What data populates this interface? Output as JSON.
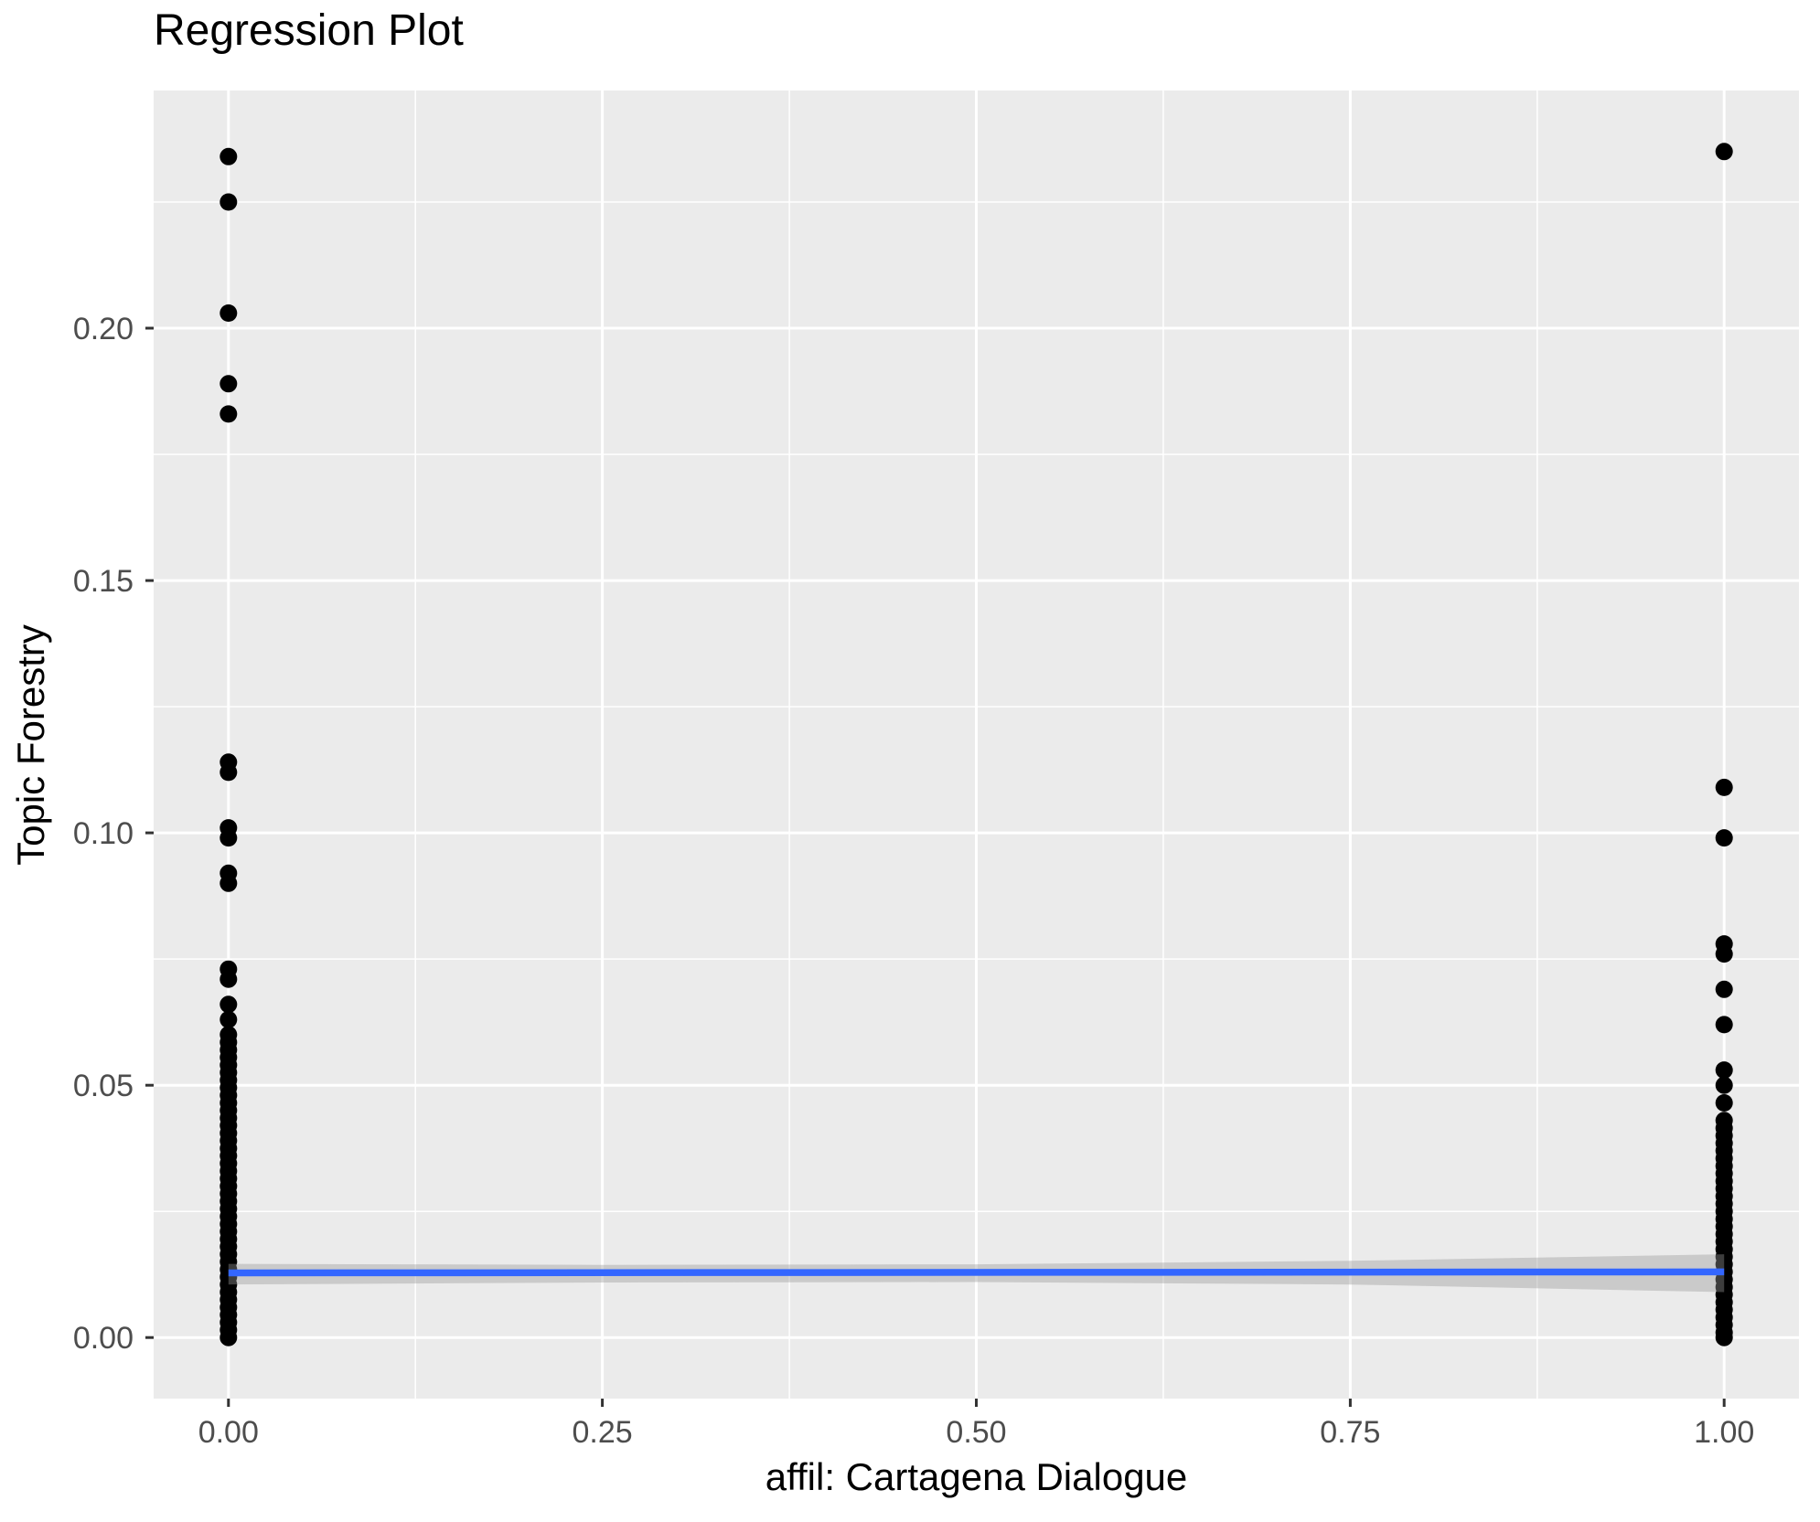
{
  "chart": {
    "title": "Regression Plot",
    "x_axis_title": "affil: Cartagena Dialogue",
    "y_axis_title": "Topic Forestry"
  },
  "chart_data": {
    "type": "scatter",
    "title": "Regression Plot",
    "xlabel": "affil: Cartagena Dialogue",
    "ylabel": "Topic Forestry",
    "xlim": [
      -0.05,
      1.05
    ],
    "ylim": [
      -0.0121,
      0.2471
    ],
    "grid": true,
    "legend": false,
    "x_ticks": [
      {
        "value": 0.0,
        "label": "0.00"
      },
      {
        "value": 0.25,
        "label": "0.25"
      },
      {
        "value": 0.5,
        "label": "0.50"
      },
      {
        "value": 0.75,
        "label": "0.75"
      },
      {
        "value": 1.0,
        "label": "1.00"
      }
    ],
    "y_ticks": [
      {
        "value": 0.0,
        "label": "0.00"
      },
      {
        "value": 0.05,
        "label": "0.05"
      },
      {
        "value": 0.1,
        "label": "0.10"
      },
      {
        "value": 0.15,
        "label": "0.15"
      },
      {
        "value": 0.2,
        "label": "0.20"
      }
    ],
    "x_minor_ticks": [
      0.125,
      0.375,
      0.625,
      0.875
    ],
    "y_minor_ticks": [
      0.025,
      0.075,
      0.125,
      0.175,
      0.225
    ],
    "colors": {
      "panel_background": "#EBEBEB",
      "grid_line": "#FFFFFF",
      "point": "#000000",
      "fit_line": "#3366FF",
      "confidence_band": "#999999",
      "tick_mark": "#333333",
      "tick_label": "#4D4D4D"
    },
    "scatter_groups": [
      {
        "x": 0,
        "values": [
          0.234,
          0.225,
          0.203,
          0.189,
          0.183,
          0.114,
          0.112,
          0.101,
          0.099,
          0.092,
          0.09,
          0.073,
          0.071,
          0.066,
          0.063,
          0.06,
          0.0585,
          0.057,
          0.0555,
          0.054,
          0.0525,
          0.051,
          0.0495,
          0.048,
          0.0465,
          0.045,
          0.0435,
          0.042,
          0.0405,
          0.039,
          0.0375,
          0.036,
          0.0345,
          0.033,
          0.0315,
          0.03,
          0.0285,
          0.027,
          0.0255,
          0.024,
          0.0225,
          0.021,
          0.0195,
          0.018,
          0.0165,
          0.015,
          0.0135,
          0.012,
          0.0105,
          0.009,
          0.0075,
          0.006,
          0.0045,
          0.003,
          0.0015,
          0.0
        ]
      },
      {
        "x": 1,
        "values": [
          0.235,
          0.109,
          0.099,
          0.078,
          0.076,
          0.069,
          0.062,
          0.053,
          0.05,
          0.0465,
          0.043,
          0.0415,
          0.04,
          0.0385,
          0.037,
          0.0355,
          0.034,
          0.0325,
          0.031,
          0.0295,
          0.028,
          0.0265,
          0.025,
          0.0235,
          0.022,
          0.0205,
          0.019,
          0.0175,
          0.016,
          0.0145,
          0.013,
          0.0115,
          0.01,
          0.0085,
          0.007,
          0.0055,
          0.004,
          0.0025,
          0.001,
          0.0
        ]
      }
    ],
    "regression_line": {
      "name": "linear-fit",
      "points": [
        [
          0,
          0.0128
        ],
        [
          1,
          0.013
        ]
      ]
    },
    "confidence_band": {
      "name": "95%-confidence-band",
      "opacity": 0.4,
      "upper": [
        [
          0,
          0.0146
        ],
        [
          0.25,
          0.0144
        ],
        [
          0.5,
          0.0145
        ],
        [
          0.75,
          0.0152
        ],
        [
          1,
          0.0165
        ]
      ],
      "lower": [
        [
          0,
          0.0105
        ],
        [
          0.25,
          0.0109
        ],
        [
          0.5,
          0.011
        ],
        [
          0.75,
          0.0105
        ],
        [
          1,
          0.009
        ]
      ]
    }
  }
}
